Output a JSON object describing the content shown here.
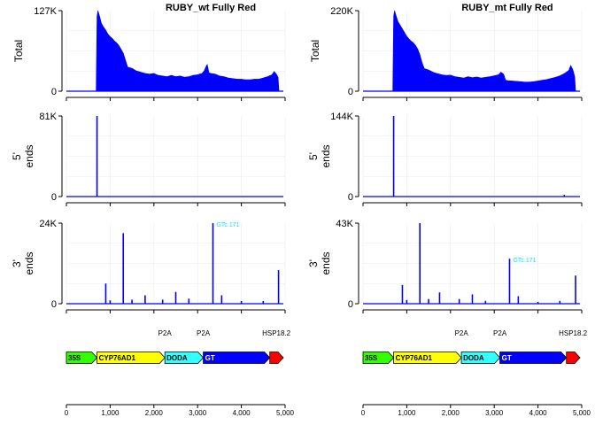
{
  "chart_data": {
    "type": "area",
    "x_range": [
      0,
      5000
    ],
    "x_ticks": [
      0,
      1000,
      2000,
      3000,
      4000,
      5000
    ],
    "x_tick_labels": [
      "0",
      "1,000",
      "2,000",
      "3,000",
      "4,000",
      "5,000"
    ],
    "row_labels": [
      "Total",
      "5'\nends",
      "3'\nends"
    ],
    "grid": true,
    "colors": {
      "signal": "#0000ff",
      "annotation": "#00e5ff"
    },
    "panels": [
      {
        "title": "RUBY_wt Fully Red",
        "tracks": [
          {
            "name": "Total",
            "ymax_label": "127K",
            "ymin_label": "0",
            "ylim": [
              0,
              127000
            ],
            "x": [
              0,
              680,
              700,
              720,
              760,
              800,
              850,
              900,
              950,
              1000,
              1050,
              1100,
              1150,
              1200,
              1250,
              1300,
              1350,
              1400,
              1500,
              1600,
              1700,
              1800,
              1900,
              2000,
              2100,
              2200,
              2300,
              2400,
              2500,
              2600,
              2700,
              2800,
              2900,
              3000,
              3100,
              3150,
              3200,
              3220,
              3260,
              3300,
              3400,
              3500,
              3600,
              3700,
              3800,
              3900,
              4000,
              4100,
              4200,
              4300,
              4400,
              4500,
              4600,
              4700,
              4750,
              4800,
              4840,
              4860
            ],
            "y": [
              0,
              0,
              118000,
              127000,
              118000,
              107000,
              101000,
              96000,
              90000,
              86000,
              83000,
              79000,
              76000,
              72000,
              66000,
              60000,
              49000,
              38000,
              36000,
              32000,
              30000,
              28000,
              27000,
              28000,
              25000,
              24000,
              23000,
              25000,
              23000,
              24000,
              22000,
              23000,
              25000,
              26000,
              28000,
              32000,
              40000,
              42000,
              29000,
              28000,
              27000,
              24000,
              23000,
              21000,
              20000,
              19000,
              19000,
              18000,
              18000,
              19000,
              19000,
              21000,
              23000,
              26000,
              31000,
              27000,
              22000,
              0
            ]
          },
          {
            "name": "5' ends",
            "ymax_label": "81K",
            "ymin_label": "0",
            "ylim": [
              0,
              81000
            ],
            "peaks": [
              {
                "x": 700,
                "y": 81000
              }
            ]
          },
          {
            "name": "3' ends",
            "ymax_label": "24K",
            "ymin_label": "0",
            "ylim": [
              0,
              24000
            ],
            "peaks": [
              {
                "x": 900,
                "y": 6000
              },
              {
                "x": 1000,
                "y": 1000
              },
              {
                "x": 1300,
                "y": 21000
              },
              {
                "x": 1500,
                "y": 1200
              },
              {
                "x": 1800,
                "y": 2500
              },
              {
                "x": 2200,
                "y": 1200
              },
              {
                "x": 2500,
                "y": 3500
              },
              {
                "x": 2800,
                "y": 1500
              },
              {
                "x": 3350,
                "y": 24000
              },
              {
                "x": 3550,
                "y": 2500
              },
              {
                "x": 4000,
                "y": 800
              },
              {
                "x": 4500,
                "y": 800
              },
              {
                "x": 4850,
                "y": 10000
              }
            ],
            "annotation": {
              "text": "GTc.171",
              "x": 3350,
              "y": 24000
            }
          }
        ]
      },
      {
        "title": "RUBY_mt Fully Red",
        "tracks": [
          {
            "name": "Total",
            "ymax_label": "220K",
            "ymin_label": "0",
            "ylim": [
              0,
              220000
            ],
            "x": [
              0,
              680,
              700,
              720,
              760,
              800,
              850,
              900,
              950,
              1000,
              1050,
              1100,
              1150,
              1200,
              1250,
              1300,
              1350,
              1400,
              1500,
              1600,
              1700,
              1800,
              1900,
              2000,
              2100,
              2200,
              2300,
              2400,
              2500,
              2600,
              2700,
              2800,
              2900,
              3000,
              3100,
              3150,
              3200,
              3220,
              3260,
              3300,
              3400,
              3500,
              3600,
              3700,
              3800,
              3900,
              4000,
              4100,
              4200,
              4300,
              4400,
              4500,
              4600,
              4700,
              4750,
              4800,
              4840,
              4860
            ],
            "y": [
              0,
              0,
              205000,
              220000,
              205000,
              190000,
              180000,
              170000,
              160000,
              150000,
              143000,
              137000,
              132000,
              125000,
              115000,
              100000,
              78000,
              62000,
              58000,
              52000,
              48000,
              45000,
              43000,
              44000,
              40000,
              38000,
              36000,
              40000,
              37000,
              39000,
              36000,
              38000,
              40000,
              42000,
              45000,
              52000,
              48000,
              45000,
              30000,
              29000,
              28000,
              27000,
              26000,
              25000,
              25000,
              26000,
              28000,
              30000,
              32000,
              35000,
              38000,
              42000,
              48000,
              56000,
              70000,
              58000,
              40000,
              0
            ]
          },
          {
            "name": "5' ends",
            "ymax_label": "144K",
            "ymin_label": "0",
            "ylim": [
              0,
              144000
            ],
            "peaks": [
              {
                "x": 700,
                "y": 144000
              },
              {
                "x": 4600,
                "y": 3000
              }
            ]
          },
          {
            "name": "3' ends",
            "ymax_label": "43K",
            "ymin_label": "0",
            "ylim": [
              0,
              43000
            ],
            "peaks": [
              {
                "x": 900,
                "y": 10000
              },
              {
                "x": 1000,
                "y": 2000
              },
              {
                "x": 1300,
                "y": 43000
              },
              {
                "x": 1500,
                "y": 2500
              },
              {
                "x": 1750,
                "y": 6000
              },
              {
                "x": 2200,
                "y": 2500
              },
              {
                "x": 2500,
                "y": 5000
              },
              {
                "x": 2800,
                "y": 1500
              },
              {
                "x": 3350,
                "y": 24000
              },
              {
                "x": 3550,
                "y": 4000
              },
              {
                "x": 4000,
                "y": 1000
              },
              {
                "x": 4500,
                "y": 1500
              },
              {
                "x": 4860,
                "y": 15000
              }
            ],
            "annotation": {
              "text": "GTc.171",
              "x": 3350,
              "y": 24000
            }
          }
        ]
      }
    ],
    "feature_labels": [
      {
        "text": "P2A",
        "x": 2250
      },
      {
        "text": "P2A",
        "x": 3130
      },
      {
        "text": "HSP18.2",
        "x": 4800
      }
    ],
    "features": [
      {
        "name": "35S",
        "start": 0,
        "end": 700,
        "color": "#33ff00"
      },
      {
        "name": "CYP76AD1",
        "start": 700,
        "end": 2250,
        "color": "#ffff00"
      },
      {
        "name": "DODA",
        "start": 2250,
        "end": 3130,
        "color": "#33ffff"
      },
      {
        "name": "GT",
        "start": 3130,
        "end": 4650,
        "color": "#0000ff"
      },
      {
        "name": "",
        "start": 4650,
        "end": 4960,
        "color": "#ff0000"
      }
    ]
  }
}
